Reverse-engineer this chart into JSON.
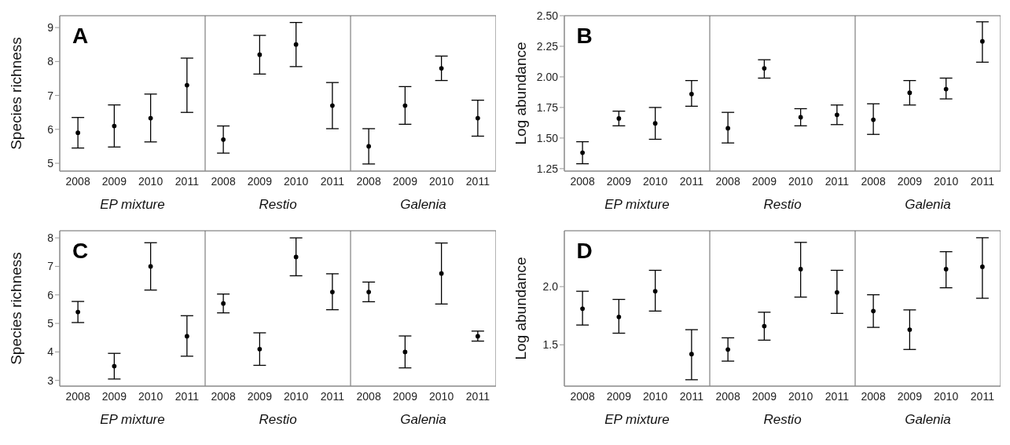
{
  "chart_data": [
    {
      "type": "scatter",
      "ylabel": "Species richness",
      "xlabel": "EP mixture",
      "annotations": [
        "A"
      ],
      "categories": [
        "2008",
        "2009",
        "2010",
        "2011"
      ],
      "values": [
        5.9,
        6.1,
        6.33,
        7.3
      ],
      "errors": [
        [
          5.45,
          6.35
        ],
        [
          5.48,
          6.72
        ],
        [
          5.63,
          7.04
        ],
        [
          6.5,
          8.1
        ]
      ],
      "color": "#000000",
      "marker": "circle",
      "ylim": [
        4.77,
        9.35
      ],
      "yticks": [
        5,
        6,
        7,
        8,
        9
      ]
    },
    {
      "type": "scatter",
      "xlabel": "Restio",
      "categories": [
        "2008",
        "2009",
        "2010",
        "2011"
      ],
      "values": [
        5.7,
        8.2,
        8.5,
        6.7
      ],
      "errors": [
        [
          5.3,
          6.1
        ],
        [
          7.63,
          8.77
        ],
        [
          7.85,
          9.15
        ],
        [
          6.02,
          7.38
        ]
      ],
      "color": "#000000",
      "marker": "circle",
      "ylim": [
        4.77,
        9.35
      ],
      "yticks": [
        5,
        6,
        7,
        8,
        9
      ],
      "tick_labels": "x"
    },
    {
      "type": "scatter",
      "xlabel": "Galenia",
      "categories": [
        "2008",
        "2009",
        "2010",
        "2011"
      ],
      "values": [
        5.5,
        6.7,
        7.8,
        6.33
      ],
      "errors": [
        [
          4.98,
          6.02
        ],
        [
          6.15,
          7.26
        ],
        [
          7.44,
          8.16
        ],
        [
          5.8,
          6.86
        ]
      ],
      "color": "#000000",
      "marker": "circle",
      "ylim": [
        4.77,
        9.35
      ],
      "yticks": [
        5,
        6,
        7,
        8,
        9
      ],
      "tick_labels": "x"
    },
    {
      "type": "scatter",
      "ylabel": "Log abundance",
      "xlabel": "EP mixture",
      "annotations": [
        "B"
      ],
      "categories": [
        "2008",
        "2009",
        "2010",
        "2011"
      ],
      "values": [
        1.38,
        1.66,
        1.62,
        1.86
      ],
      "errors": [
        [
          1.29,
          1.47
        ],
        [
          1.6,
          1.72
        ],
        [
          1.49,
          1.75
        ],
        [
          1.76,
          1.97
        ]
      ],
      "color": "#000000",
      "marker": "circle",
      "ylim": [
        1.23,
        2.5
      ],
      "yticks": [
        {
          "value": 1.25,
          "label": "1.25"
        },
        {
          "value": 1.5,
          "label": "1.50"
        },
        {
          "value": 1.75,
          "label": "1.75"
        },
        {
          "value": 2,
          "label": "2.00"
        },
        {
          "value": 2.25,
          "label": "2.25"
        },
        {
          "value": 2.5,
          "label": "2.50"
        }
      ]
    },
    {
      "type": "scatter",
      "xlabel": "Restio",
      "categories": [
        "2008",
        "2009",
        "2010",
        "2011"
      ],
      "values": [
        1.58,
        2.07,
        1.67,
        1.69
      ],
      "errors": [
        [
          1.46,
          1.71
        ],
        [
          1.99,
          2.14
        ],
        [
          1.6,
          1.74
        ],
        [
          1.61,
          1.77
        ]
      ],
      "color": "#000000",
      "marker": "circle",
      "ylim": [
        1.23,
        2.5
      ],
      "yticks": [
        1.25,
        1.5,
        1.75,
        2,
        2.25,
        2.5
      ],
      "tick_labels": "x"
    },
    {
      "type": "scatter",
      "xlabel": "Galenia",
      "categories": [
        "2008",
        "2009",
        "2010",
        "2011"
      ],
      "values": [
        1.65,
        1.87,
        1.9,
        2.29
      ],
      "errors": [
        [
          1.53,
          1.78
        ],
        [
          1.77,
          1.97
        ],
        [
          1.82,
          1.99
        ],
        [
          2.12,
          2.45
        ]
      ],
      "color": "#000000",
      "marker": "circle",
      "ylim": [
        1.23,
        2.5
      ],
      "yticks": [
        1.25,
        1.5,
        1.75,
        2,
        2.25,
        2.5
      ],
      "tick_labels": "x"
    },
    {
      "type": "scatter",
      "ylabel": "Species richness",
      "xlabel": "EP mixture",
      "annotations": [
        "C"
      ],
      "categories": [
        "2008",
        "2009",
        "2010",
        "2011"
      ],
      "values": [
        5.4,
        3.5,
        7.0,
        4.55
      ],
      "errors": [
        [
          5.03,
          5.77
        ],
        [
          3.05,
          3.95
        ],
        [
          6.17,
          7.83
        ],
        [
          3.85,
          5.27
        ]
      ],
      "color": "#000000",
      "marker": "circle",
      "ylim": [
        2.8,
        8.25
      ],
      "yticks": [
        3,
        4,
        5,
        6,
        7,
        8
      ]
    },
    {
      "type": "scatter",
      "xlabel": "Restio",
      "categories": [
        "2008",
        "2009",
        "2010",
        "2011"
      ],
      "values": [
        5.7,
        4.1,
        7.33,
        6.1
      ],
      "errors": [
        [
          5.37,
          6.03
        ],
        [
          3.53,
          4.67
        ],
        [
          6.67,
          8.0
        ],
        [
          5.48,
          6.74
        ]
      ],
      "color": "#000000",
      "marker": "circle",
      "ylim": [
        2.8,
        8.25
      ],
      "yticks": [
        3,
        4,
        5,
        6,
        7,
        8
      ],
      "tick_labels": "x"
    },
    {
      "type": "scatter",
      "xlabel": "Galenia",
      "categories": [
        "2008",
        "2009",
        "2010",
        "2011"
      ],
      "values": [
        6.1,
        4.0,
        6.75,
        4.55
      ],
      "errors": [
        [
          5.76,
          6.45
        ],
        [
          3.44,
          4.56
        ],
        [
          5.68,
          7.82
        ],
        [
          4.38,
          4.73
        ]
      ],
      "color": "#000000",
      "marker": "circle",
      "ylim": [
        2.8,
        8.25
      ],
      "yticks": [
        3,
        4,
        5,
        6,
        7,
        8
      ],
      "tick_labels": "x"
    },
    {
      "type": "scatter",
      "ylabel": "Log abundance",
      "xlabel": "EP mixture",
      "annotations": [
        "D"
      ],
      "categories": [
        "2008",
        "2009",
        "2010",
        "2011"
      ],
      "values": [
        1.81,
        1.74,
        1.96,
        1.42
      ],
      "errors": [
        [
          1.67,
          1.96
        ],
        [
          1.6,
          1.89
        ],
        [
          1.79,
          2.14
        ],
        [
          1.2,
          1.63
        ]
      ],
      "color": "#000000",
      "marker": "circle",
      "ylim": [
        1.145,
        2.48
      ],
      "yticks": [
        1.5,
        {
          "value": 2,
          "label": "2.0"
        }
      ]
    },
    {
      "type": "scatter",
      "xlabel": "Restio",
      "categories": [
        "2008",
        "2009",
        "2010",
        "2011"
      ],
      "values": [
        1.46,
        1.66,
        2.15,
        1.95
      ],
      "errors": [
        [
          1.36,
          1.56
        ],
        [
          1.54,
          1.78
        ],
        [
          1.91,
          2.38
        ],
        [
          1.77,
          2.14
        ]
      ],
      "color": "#000000",
      "marker": "circle",
      "ylim": [
        1.145,
        2.48
      ],
      "yticks": [
        1.5,
        2
      ],
      "tick_labels": "x"
    },
    {
      "type": "scatter",
      "xlabel": "Galenia",
      "categories": [
        "2008",
        "2009",
        "2010",
        "2011"
      ],
      "values": [
        1.79,
        1.63,
        2.15,
        2.17
      ],
      "errors": [
        [
          1.65,
          1.93
        ],
        [
          1.46,
          1.8
        ],
        [
          1.99,
          2.3
        ],
        [
          1.9,
          2.42
        ]
      ],
      "color": "#000000",
      "marker": "circle",
      "ylim": [
        1.145,
        2.48
      ],
      "yticks": [
        1.5,
        2
      ],
      "tick_labels": "x"
    }
  ]
}
